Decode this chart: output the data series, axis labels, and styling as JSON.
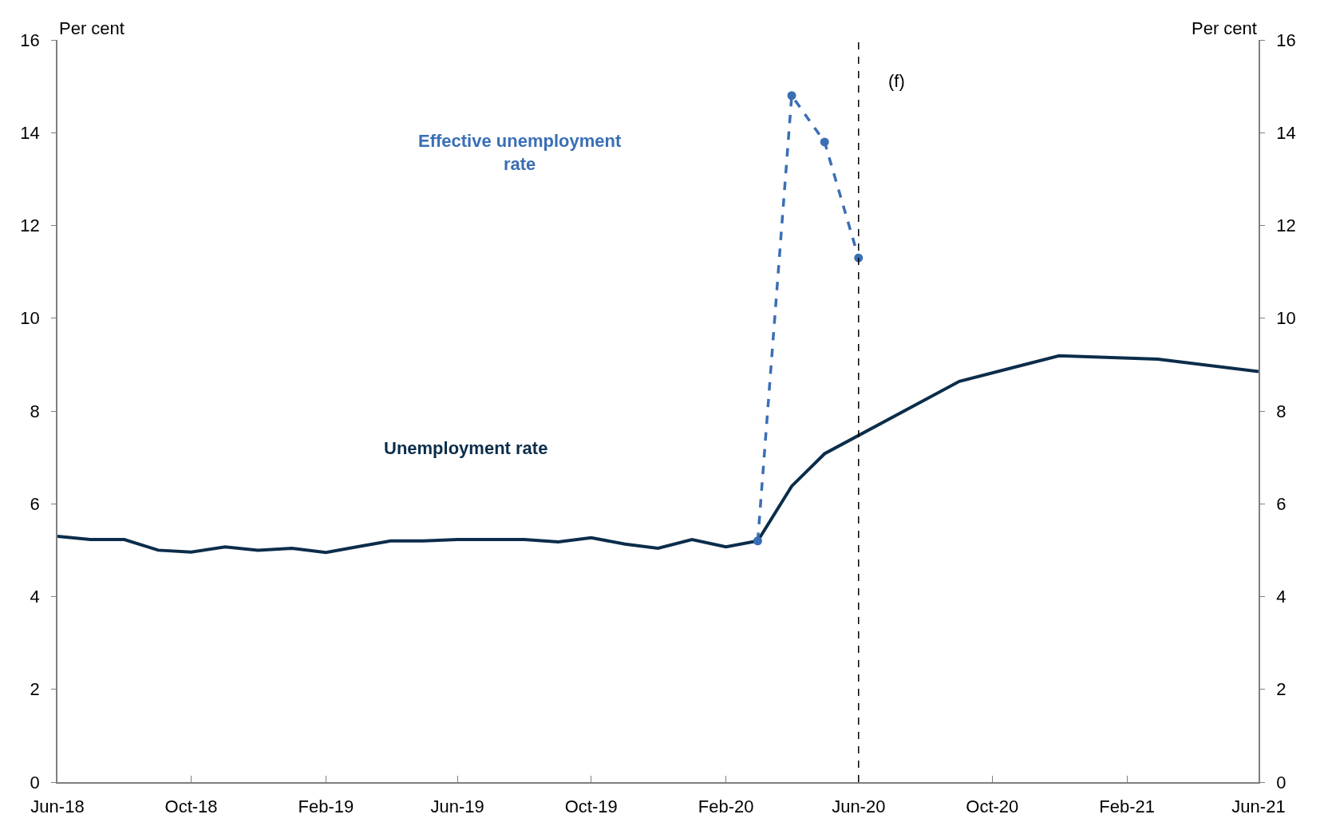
{
  "chart_data": {
    "type": "line",
    "ylabel": "Per cent",
    "y2label": "Per cent",
    "series": [
      {
        "name": "Unemployment rate",
        "color": "#0b2d4a",
        "line_style": "solid",
        "marker": "none",
        "x": [
          "2018-06",
          "2018-07",
          "2018-08",
          "2018-09",
          "2018-10",
          "2018-11",
          "2018-12",
          "2019-01",
          "2019-02",
          "2019-03",
          "2019-04",
          "2019-05",
          "2019-06",
          "2019-07",
          "2019-08",
          "2019-09",
          "2019-10",
          "2019-11",
          "2019-12",
          "2020-01",
          "2020-02",
          "2020-03",
          "2020-04",
          "2020-05",
          "2020-09",
          "2020-12",
          "2021-03",
          "2021-06"
        ],
        "values": [
          5.3,
          5.23,
          5.23,
          5.0,
          4.96,
          5.07,
          5.0,
          5.04,
          4.95,
          5.07,
          5.2,
          5.2,
          5.23,
          5.23,
          5.23,
          5.18,
          5.27,
          5.13,
          5.04,
          5.23,
          5.07,
          5.2,
          6.38,
          7.08,
          8.64,
          9.19,
          9.12,
          8.85
        ]
      },
      {
        "name": "Effective unemployment rate",
        "color": "#3a6fb5",
        "line_style": "dashed",
        "marker": "circle",
        "x": [
          "2020-03",
          "2020-04",
          "2020-05",
          "2020-06"
        ],
        "values": [
          5.2,
          14.8,
          13.8,
          11.3
        ]
      }
    ],
    "xlim": [
      "2018-06",
      "2021-06"
    ],
    "xticks": [
      {
        "value": "2018-06",
        "label": "Jun-18"
      },
      {
        "value": "2018-10",
        "label": "Oct-18"
      },
      {
        "value": "2019-02",
        "label": "Feb-19"
      },
      {
        "value": "2019-06",
        "label": "Jun-19"
      },
      {
        "value": "2019-10",
        "label": "Oct-19"
      },
      {
        "value": "2020-02",
        "label": "Feb-20"
      },
      {
        "value": "2020-06",
        "label": "Jun-20"
      },
      {
        "value": "2020-10",
        "label": "Oct-20"
      },
      {
        "value": "2021-02",
        "label": "Feb-21"
      },
      {
        "value": "2021-06",
        "label": "Jun-21"
      }
    ],
    "ylim": [
      0,
      16
    ],
    "yticks": [
      0,
      2,
      4,
      6,
      8,
      10,
      12,
      14,
      16
    ],
    "y2lim": [
      0,
      16
    ],
    "y2ticks": [
      0,
      2,
      4,
      6,
      8,
      10,
      12,
      14,
      16
    ],
    "ref_lines": [
      {
        "axis": "x",
        "value": "2020-06",
        "label": "(f)",
        "color": "#000000",
        "line_style": "dashed"
      }
    ],
    "legend": false
  }
}
